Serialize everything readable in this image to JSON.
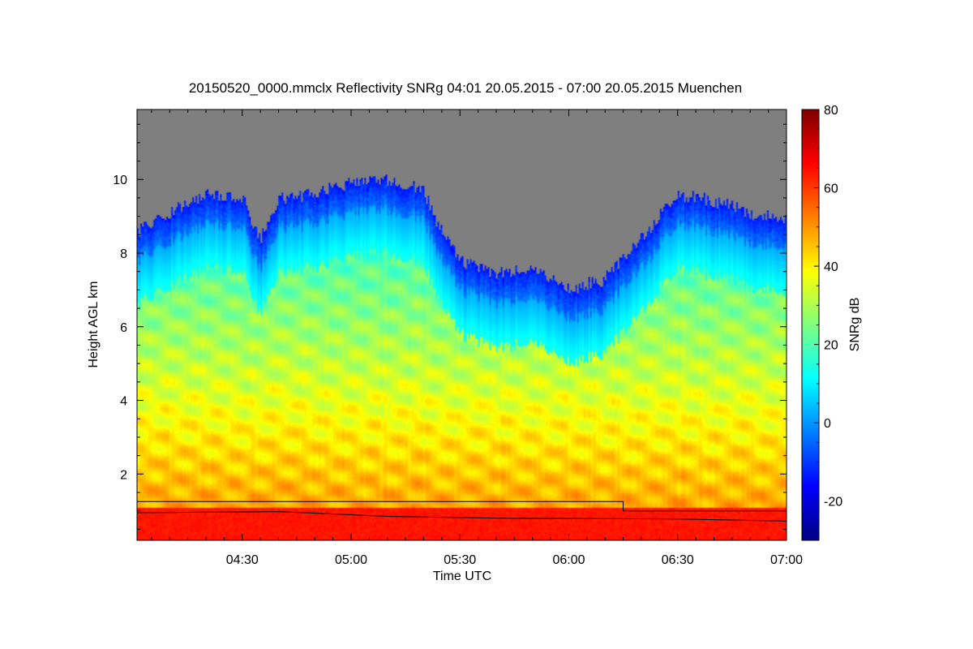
{
  "chart_data": {
    "type": "heatmap",
    "title": "20150520_0000.mmclx Reflectivity SNRg   04:01 20.05.2015 - 07:00 20.05.2015 Muenchen",
    "xlabel": "Time UTC",
    "ylabel": "Height AGL km",
    "x_range": [
      "04:01",
      "07:00"
    ],
    "x_ticks": [
      "04:30",
      "05:00",
      "05:30",
      "06:00",
      "06:30",
      "07:00"
    ],
    "ylim": [
      0.2,
      11.9
    ],
    "y_ticks": [
      "2",
      "4",
      "6",
      "8",
      "10"
    ],
    "colorbar": {
      "label": "SNRg dB",
      "range": [
        -30,
        80
      ],
      "ticks": [
        "-20",
        "0",
        "20",
        "40",
        "60",
        "80"
      ]
    },
    "no_data_color": "#7f7f7f",
    "colormap": [
      "#00007f",
      "#0000ff",
      "#007fff",
      "#00ffff",
      "#7fff7f",
      "#ffff00",
      "#ff7f00",
      "#ff0000",
      "#7f0000"
    ],
    "cloud_top_km": [
      {
        "t": "04:01",
        "h": 8.6
      },
      {
        "t": "04:10",
        "h": 9.1
      },
      {
        "t": "04:20",
        "h": 9.6
      },
      {
        "t": "04:30",
        "h": 9.5
      },
      {
        "t": "04:35",
        "h": 8.4
      },
      {
        "t": "04:40",
        "h": 9.5
      },
      {
        "t": "04:50",
        "h": 9.6
      },
      {
        "t": "05:00",
        "h": 9.9
      },
      {
        "t": "05:10",
        "h": 10.0
      },
      {
        "t": "05:20",
        "h": 9.7
      },
      {
        "t": "05:25",
        "h": 8.6
      },
      {
        "t": "05:30",
        "h": 7.8
      },
      {
        "t": "05:40",
        "h": 7.4
      },
      {
        "t": "05:50",
        "h": 7.6
      },
      {
        "t": "06:00",
        "h": 7.0
      },
      {
        "t": "06:10",
        "h": 7.3
      },
      {
        "t": "06:20",
        "h": 8.4
      },
      {
        "t": "06:30",
        "h": 9.6
      },
      {
        "t": "06:40",
        "h": 9.4
      },
      {
        "t": "06:50",
        "h": 9.1
      },
      {
        "t": "07:00",
        "h": 8.9
      }
    ],
    "boundary_layer_lines_km": [
      {
        "name": "upper",
        "points": [
          {
            "t": "04:01",
            "h": 1.25
          },
          {
            "t": "06:15",
            "h": 1.25
          },
          {
            "t": "06:15",
            "h": 1.0
          },
          {
            "t": "07:00",
            "h": 1.0
          }
        ]
      },
      {
        "name": "lower",
        "points": [
          {
            "t": "04:01",
            "h": 0.95
          },
          {
            "t": "04:40",
            "h": 0.98
          },
          {
            "t": "05:10",
            "h": 0.85
          },
          {
            "t": "05:40",
            "h": 0.8
          },
          {
            "t": "06:30",
            "h": 0.78
          },
          {
            "t": "07:00",
            "h": 0.72
          }
        ]
      }
    ]
  }
}
